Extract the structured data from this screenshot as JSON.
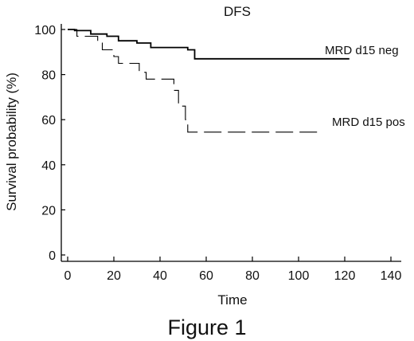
{
  "chart_data": {
    "type": "line",
    "title": "DFS",
    "xlabel": "Time",
    "ylabel": "Survival probability (%)",
    "xlim": [
      0,
      140
    ],
    "ylim": [
      0,
      100
    ],
    "x_ticks": [
      0,
      20,
      40,
      60,
      80,
      100,
      120,
      140
    ],
    "y_ticks": [
      0,
      20,
      40,
      60,
      80,
      100
    ],
    "grid": false,
    "legend": "direct labels at right end of each curve",
    "series": [
      {
        "name": "MRD d15 neg",
        "style": "solid",
        "color": "#000000",
        "steps": [
          [
            0,
            100
          ],
          [
            3,
            99.5
          ],
          [
            10,
            98
          ],
          [
            17,
            97
          ],
          [
            22,
            95
          ],
          [
            30,
            94
          ],
          [
            36,
            92
          ],
          [
            52,
            91
          ],
          [
            55,
            87
          ],
          [
            122,
            87
          ]
        ]
      },
      {
        "name": "MRD d15 pos",
        "style": "dashed",
        "color": "#000000",
        "steps": [
          [
            0,
            100
          ],
          [
            4,
            97
          ],
          [
            13,
            94
          ],
          [
            15,
            91
          ],
          [
            20,
            88
          ],
          [
            22,
            85
          ],
          [
            31,
            81
          ],
          [
            34,
            78
          ],
          [
            46,
            73
          ],
          [
            48,
            66
          ],
          [
            51,
            60
          ],
          [
            52,
            54.5
          ],
          [
            110,
            54.5
          ]
        ]
      }
    ]
  },
  "caption": "Figure 1"
}
